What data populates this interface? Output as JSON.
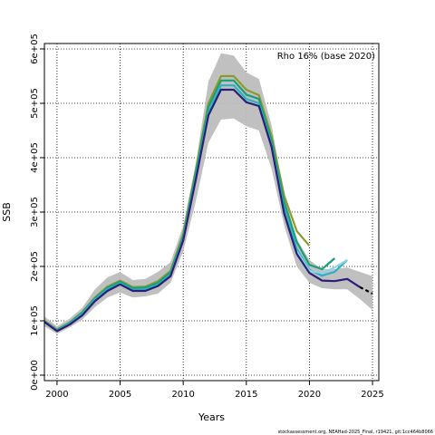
{
  "chart_data": {
    "type": "line",
    "title": "",
    "annotation": "Rho 16% (base 2020)",
    "xlabel": "Years",
    "ylabel": "SSB",
    "footer": "stockassessment.org, NEAHad-2025_Final, r19421, git:1cc464b8066",
    "xlim": [
      1999,
      2025.5
    ],
    "ylim": [
      -10000,
      610000
    ],
    "x_ticks": [
      2000,
      2005,
      2010,
      2015,
      2020,
      2025
    ],
    "x_tick_labels": [
      "2000",
      "2005",
      "2010",
      "2015",
      "2020",
      "2025"
    ],
    "y_ticks": [
      0,
      100000,
      200000,
      300000,
      400000,
      500000,
      600000
    ],
    "y_tick_labels": [
      "0e+00",
      "1e+05",
      "2e+05",
      "3e+05",
      "4e+05",
      "5e+05",
      "6e+05"
    ],
    "grid": true,
    "confidence_band": {
      "x": [
        1999,
        2000,
        2001,
        2002,
        2003,
        2004,
        2005,
        2006,
        2007,
        2008,
        2009,
        2010,
        2011,
        2012,
        2013,
        2014,
        2015,
        2016,
        2017,
        2018,
        2019,
        2020,
        2021,
        2022,
        2023,
        2024,
        2025
      ],
      "lower": [
        90000,
        76000,
        88000,
        102000,
        125000,
        143000,
        152000,
        143000,
        145000,
        150000,
        170000,
        228000,
        320000,
        428000,
        470000,
        472000,
        458000,
        450000,
        380000,
        275000,
        200000,
        170000,
        160000,
        158000,
        158000,
        140000,
        120000
      ],
      "upper": [
        108000,
        90000,
        104000,
        124000,
        158000,
        180000,
        190000,
        175000,
        177000,
        190000,
        208000,
        275000,
        390000,
        540000,
        592000,
        588000,
        557000,
        545000,
        460000,
        330000,
        250000,
        212000,
        195000,
        195000,
        198000,
        190000,
        182000
      ]
    },
    "series": [
      {
        "color": "#8a9a2e",
        "x": [
          1999,
          2000,
          2001,
          2002,
          2003,
          2004,
          2005,
          2006,
          2007,
          2008,
          2009,
          2010,
          2011,
          2012,
          2013,
          2014,
          2015,
          2016,
          2017,
          2018,
          2019,
          2020
        ],
        "values": [
          100000,
          84000,
          97000,
          116000,
          143000,
          163000,
          174000,
          162000,
          163000,
          173000,
          192000,
          260000,
          378000,
          500000,
          550000,
          550000,
          525000,
          515000,
          440000,
          330000,
          265000,
          238000
        ]
      },
      {
        "color": "#1a9e77",
        "x": [
          1999,
          2000,
          2001,
          2002,
          2003,
          2004,
          2005,
          2006,
          2007,
          2008,
          2009,
          2010,
          2011,
          2012,
          2013,
          2014,
          2015,
          2016,
          2017,
          2018,
          2019,
          2020,
          2021,
          2022
        ],
        "values": [
          99000,
          83000,
          96000,
          115000,
          141000,
          161000,
          172000,
          160000,
          161000,
          170000,
          189000,
          255000,
          372000,
          493000,
          542000,
          542000,
          516000,
          508000,
          432000,
          318000,
          245000,
          203000,
          195000,
          215000
        ]
      },
      {
        "color": "#29b2c2",
        "x": [
          1999,
          2000,
          2001,
          2002,
          2003,
          2004,
          2005,
          2006,
          2007,
          2008,
          2009,
          2010,
          2011,
          2012,
          2013,
          2014,
          2015,
          2016,
          2017,
          2018,
          2019,
          2020,
          2021,
          2022,
          2023
        ],
        "values": [
          98000,
          82000,
          95000,
          113000,
          139000,
          158000,
          169000,
          157000,
          158000,
          166000,
          185000,
          250000,
          365000,
          483000,
          533000,
          533000,
          508000,
          500000,
          424000,
          305000,
          232000,
          194000,
          183000,
          190000,
          212000
        ]
      },
      {
        "color": "#8fd3e8",
        "x": [
          2019,
          2020,
          2021,
          2022,
          2023
        ],
        "values": [
          228000,
          192000,
          188000,
          198000,
          212000
        ]
      },
      {
        "color": "#2a1e78",
        "x": [
          1999,
          2000,
          2001,
          2002,
          2003,
          2004,
          2005,
          2006,
          2007,
          2008,
          2009,
          2010,
          2011,
          2012,
          2013,
          2014,
          2015,
          2016,
          2017,
          2018,
          2019,
          2020,
          2021,
          2022,
          2023,
          2024
        ],
        "values": [
          98000,
          81000,
          93000,
          110000,
          136000,
          155000,
          167000,
          155000,
          155000,
          164000,
          182000,
          248000,
          360000,
          478000,
          525000,
          525000,
          502000,
          495000,
          420000,
          297000,
          223000,
          188000,
          174000,
          173000,
          177000,
          162000
        ]
      }
    ],
    "projection": {
      "color": "#000000",
      "style": "dashed",
      "x": [
        2024,
        2025
      ],
      "values": [
        162000,
        150000
      ]
    }
  }
}
